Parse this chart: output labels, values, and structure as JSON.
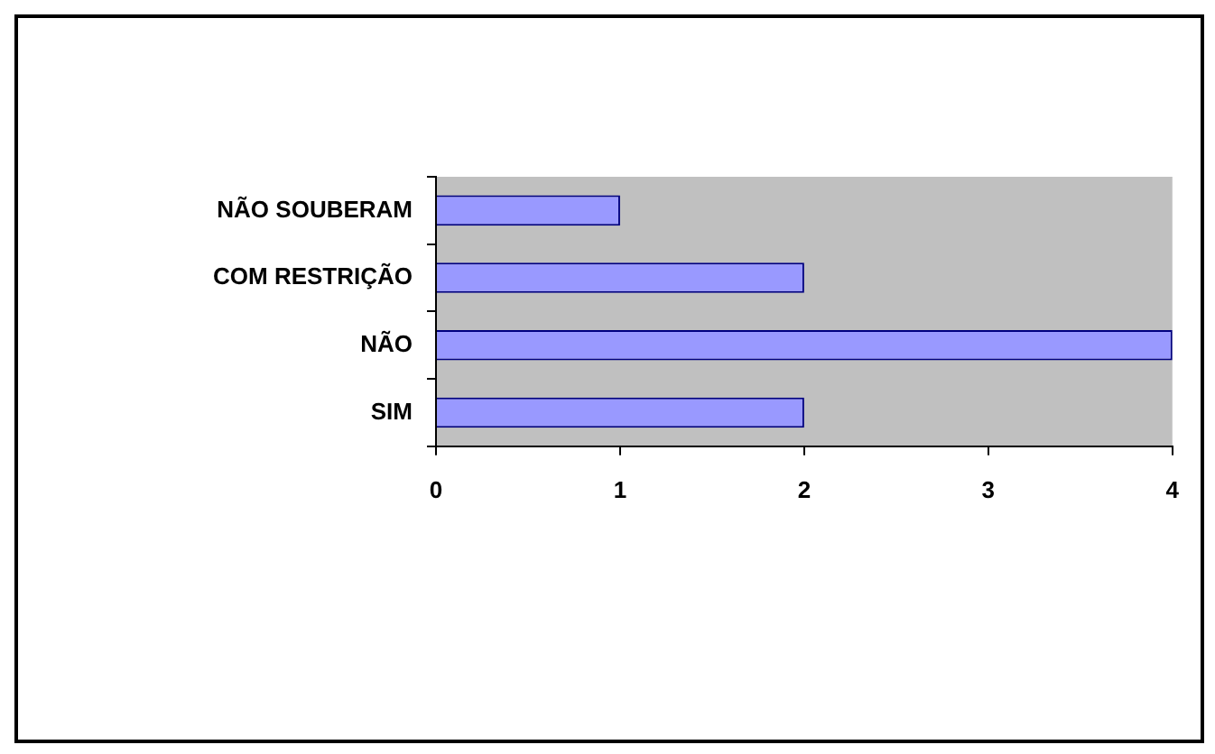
{
  "chart_data": {
    "type": "bar",
    "orientation": "horizontal",
    "categories": [
      "NÃO SOUBERAM",
      "COM RESTRIÇÃO",
      "NÃO",
      "SIM"
    ],
    "values": [
      1,
      2,
      4,
      2
    ],
    "color": "#9999ff",
    "xlim": [
      0,
      4
    ],
    "xticks": [
      0,
      1,
      2,
      3,
      4
    ],
    "grid": false,
    "legend": false
  }
}
